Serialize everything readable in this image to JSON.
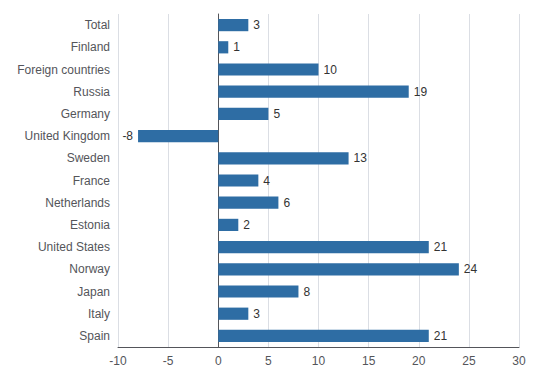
{
  "chart_data": {
    "type": "bar",
    "orientation": "horizontal",
    "categories": [
      "Total",
      "Finland",
      "Foreign countries",
      "Russia",
      "Germany",
      "United Kingdom",
      "Sweden",
      "France",
      "Netherlands",
      "Estonia",
      "United States",
      "Norway",
      "Japan",
      "Italy",
      "Spain"
    ],
    "values": [
      3,
      1,
      10,
      19,
      5,
      -8,
      13,
      4,
      6,
      2,
      21,
      24,
      8,
      3,
      21
    ],
    "color": "#2E6DA4",
    "xlim": [
      -10,
      30
    ],
    "xticks": [
      -10,
      -5,
      0,
      5,
      10,
      15,
      20,
      25,
      30
    ],
    "grid": true,
    "data_labels": true
  }
}
